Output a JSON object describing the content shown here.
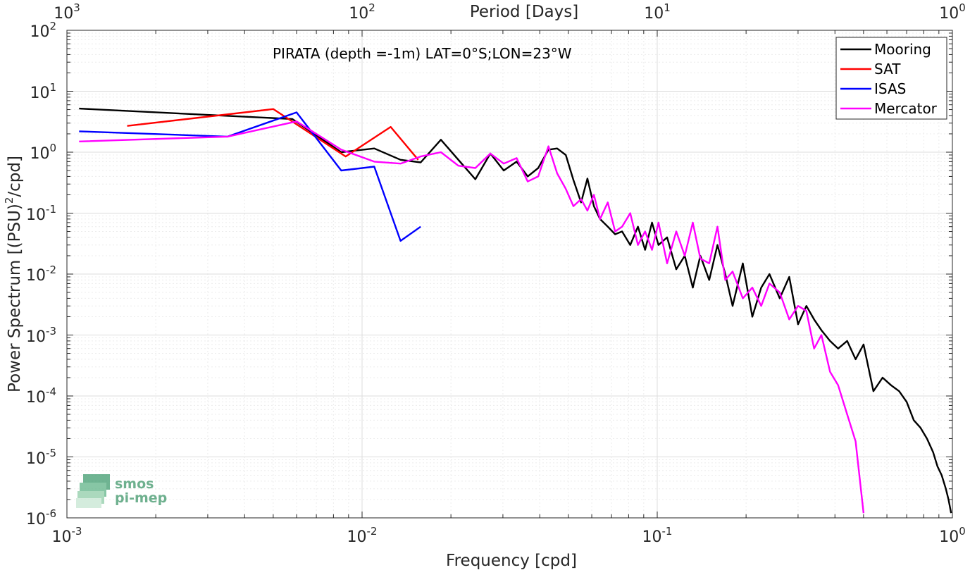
{
  "chart_data": {
    "type": "line",
    "annotation": "PIRATA (depth =-1m) LAT=0°S;LON=23°W",
    "xlabel": "Frequency [cpd]",
    "ylabel": "Power Spectrum [(PSU)²/cpd]",
    "ylabel_parts": {
      "before": "Power Spectrum [(PSU)",
      "sup": "2",
      "after": "/cpd]"
    },
    "top_xlabel": "Period [Days]",
    "x_scale": "log",
    "y_scale": "log",
    "xlim": [
      0.001,
      1
    ],
    "ylim": [
      1e-06,
      100
    ],
    "grid": true,
    "legend_position": "top-right",
    "x_tick_labels": [
      {
        "base": "10",
        "exp": "-3"
      },
      {
        "base": "10",
        "exp": "-2"
      },
      {
        "base": "10",
        "exp": "-1"
      },
      {
        "base": "10",
        "exp": "0"
      }
    ],
    "top_tick_labels": [
      {
        "base": "10",
        "exp": "3"
      },
      {
        "base": "10",
        "exp": "2"
      },
      {
        "base": "10",
        "exp": "1"
      },
      {
        "base": "10",
        "exp": "0"
      }
    ],
    "y_tick_labels": [
      {
        "base": "10",
        "exp": "2"
      },
      {
        "base": "10",
        "exp": "1"
      },
      {
        "base": "10",
        "exp": "0"
      },
      {
        "base": "10",
        "exp": "-1"
      },
      {
        "base": "10",
        "exp": "-2"
      },
      {
        "base": "10",
        "exp": "-3"
      },
      {
        "base": "10",
        "exp": "-4"
      },
      {
        "base": "10",
        "exp": "-5"
      },
      {
        "base": "10",
        "exp": "-6"
      }
    ],
    "series": [
      {
        "name": "Mooring",
        "color": "#000000",
        "x": [
          0.0011,
          0.0058,
          0.0085,
          0.011,
          0.0135,
          0.0158,
          0.0185,
          0.0212,
          0.0242,
          0.0272,
          0.0302,
          0.0334,
          0.0364,
          0.0395,
          0.0428,
          0.0458,
          0.049,
          0.052,
          0.0552,
          0.058,
          0.061,
          0.064,
          0.068,
          0.072,
          0.076,
          0.081,
          0.086,
          0.091,
          0.096,
          0.101,
          0.108,
          0.116,
          0.124,
          0.132,
          0.14,
          0.15,
          0.16,
          0.17,
          0.18,
          0.195,
          0.21,
          0.225,
          0.24,
          0.26,
          0.28,
          0.3,
          0.32,
          0.34,
          0.36,
          0.385,
          0.41,
          0.44,
          0.47,
          0.5,
          0.54,
          0.58,
          0.62,
          0.66,
          0.7,
          0.74,
          0.78,
          0.82,
          0.86,
          0.89,
          0.92,
          0.95,
          0.97,
          0.99
        ],
        "y": [
          5.2,
          3.5,
          1.0,
          1.15,
          0.75,
          0.68,
          1.6,
          0.75,
          0.36,
          0.95,
          0.5,
          0.7,
          0.4,
          0.55,
          1.1,
          1.15,
          0.9,
          0.35,
          0.15,
          0.37,
          0.13,
          0.08,
          0.06,
          0.045,
          0.05,
          0.03,
          0.06,
          0.025,
          0.07,
          0.03,
          0.04,
          0.012,
          0.02,
          0.006,
          0.02,
          0.008,
          0.03,
          0.01,
          0.003,
          0.015,
          0.002,
          0.006,
          0.01,
          0.004,
          0.009,
          0.0015,
          0.003,
          0.0018,
          0.0012,
          0.0008,
          0.0006,
          0.0008,
          0.0004,
          0.0007,
          0.00012,
          0.0002,
          0.00015,
          0.00012,
          8e-05,
          4e-05,
          3e-05,
          2e-05,
          1.2e-05,
          7e-06,
          5e-06,
          3e-06,
          2e-06,
          1.2e-06
        ]
      },
      {
        "name": "SAT",
        "color": "#ff0000",
        "x": [
          0.0016,
          0.005,
          0.0088,
          0.0125,
          0.0155
        ],
        "y": [
          2.7,
          5.1,
          0.85,
          2.6,
          0.75
        ]
      },
      {
        "name": "ISAS",
        "color": "#0000ff",
        "x": [
          0.0011,
          0.0035,
          0.006,
          0.0085,
          0.011,
          0.0135,
          0.0158
        ],
        "y": [
          2.2,
          1.8,
          4.5,
          0.5,
          0.58,
          0.035,
          0.06
        ]
      },
      {
        "name": "Mercator",
        "color": "#ff00ff",
        "x": [
          0.0011,
          0.0035,
          0.006,
          0.0085,
          0.011,
          0.0135,
          0.0158,
          0.0185,
          0.0212,
          0.0242,
          0.0272,
          0.0302,
          0.0334,
          0.0364,
          0.0395,
          0.0428,
          0.0458,
          0.049,
          0.052,
          0.0552,
          0.058,
          0.061,
          0.064,
          0.068,
          0.072,
          0.076,
          0.081,
          0.086,
          0.091,
          0.096,
          0.101,
          0.108,
          0.116,
          0.124,
          0.132,
          0.14,
          0.15,
          0.16,
          0.17,
          0.18,
          0.195,
          0.21,
          0.225,
          0.24,
          0.26,
          0.28,
          0.3,
          0.32,
          0.34,
          0.36,
          0.385,
          0.41,
          0.44,
          0.47,
          0.5
        ],
        "y": [
          1.5,
          1.8,
          3.2,
          1.1,
          0.7,
          0.65,
          0.85,
          1.0,
          0.6,
          0.55,
          0.95,
          0.65,
          0.8,
          0.33,
          0.4,
          1.25,
          0.45,
          0.25,
          0.13,
          0.17,
          0.11,
          0.2,
          0.08,
          0.15,
          0.05,
          0.06,
          0.1,
          0.03,
          0.05,
          0.025,
          0.07,
          0.015,
          0.05,
          0.02,
          0.07,
          0.018,
          0.015,
          0.06,
          0.008,
          0.011,
          0.004,
          0.006,
          0.003,
          0.007,
          0.005,
          0.0018,
          0.003,
          0.0025,
          0.0006,
          0.001,
          0.00025,
          0.00015,
          5e-05,
          1.8e-05,
          1.2e-06
        ]
      }
    ]
  },
  "logo": {
    "line1": "smos",
    "line2": "pi-mep"
  }
}
